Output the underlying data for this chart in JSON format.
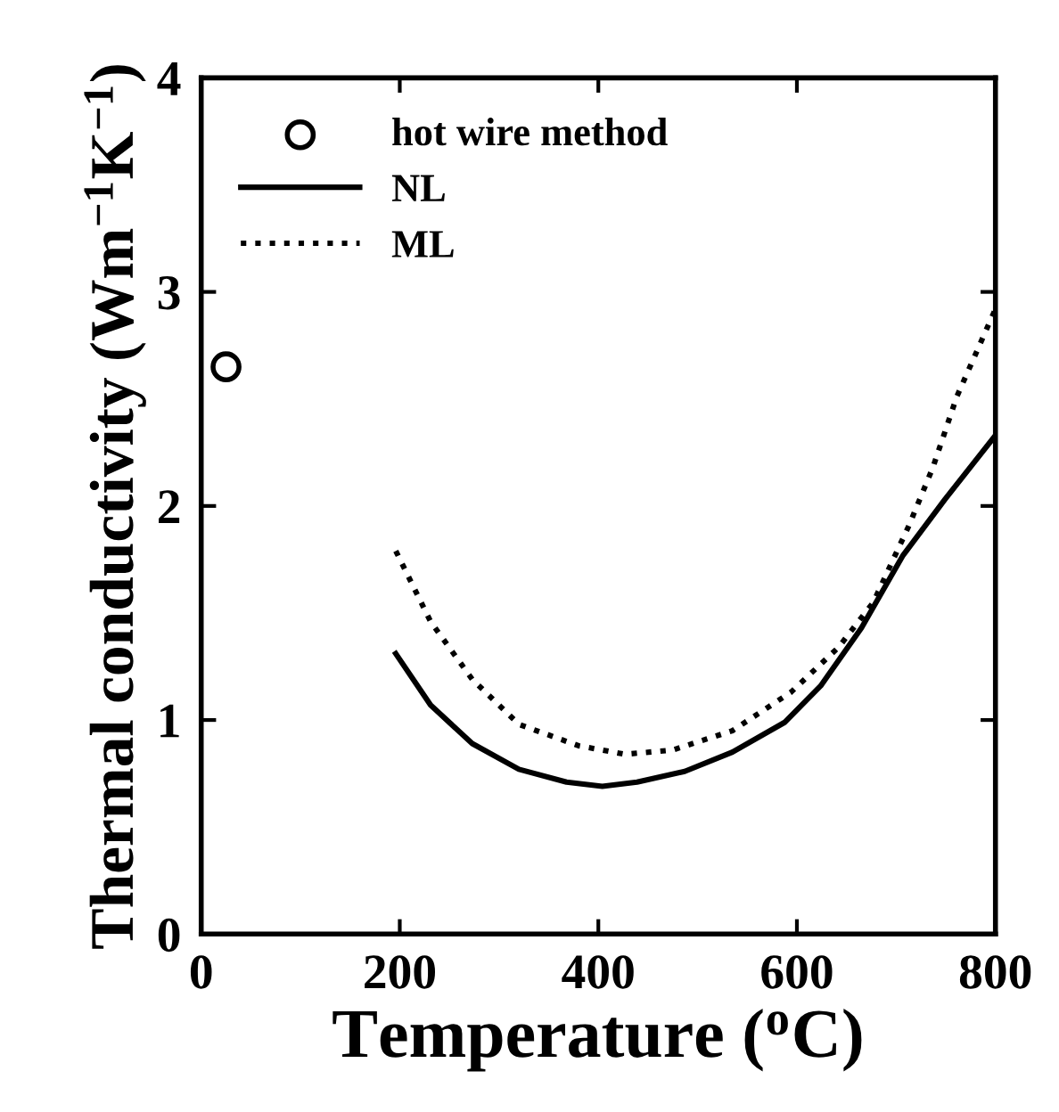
{
  "chart_data": {
    "type": "line",
    "xlabel": "Temperature ($^{o}$C)",
    "ylabel": "Thermal conductivity (Wm$^{−1}$K$^{−1}$)",
    "xlim": [
      0,
      800
    ],
    "xticks": [
      0,
      200,
      400,
      600,
      800
    ],
    "ylim": [
      0,
      4
    ],
    "yticks": [
      0,
      1,
      2,
      3,
      4
    ],
    "grid": false,
    "legend": "top left",
    "series": [
      {
        "name": "hot wire method",
        "type": "scatter",
        "marker": "circle",
        "color": "#000000",
        "x": [
          25
        ],
        "values": [
          2.65
        ]
      },
      {
        "name": "NL",
        "line_style": "solid",
        "color": "#000000",
        "x": [
          196,
          231,
          273,
          320,
          368,
          404,
          439,
          487,
          535,
          588,
          624,
          665,
          707,
          749,
          800
        ],
        "values": [
          1.31,
          1.07,
          0.89,
          0.77,
          0.71,
          0.69,
          0.71,
          0.76,
          0.85,
          0.99,
          1.16,
          1.43,
          1.77,
          2.03,
          2.33
        ]
      },
      {
        "name": "ML",
        "line_style": "dotted",
        "color": "#000000",
        "x": [
          196,
          231,
          273,
          320,
          380,
          427,
          475,
          535,
          594,
          642,
          677,
          713,
          737,
          761,
          800
        ],
        "values": [
          1.79,
          1.46,
          1.19,
          0.98,
          0.88,
          0.84,
          0.86,
          0.95,
          1.13,
          1.34,
          1.55,
          1.91,
          2.18,
          2.51,
          2.92
        ]
      }
    ]
  }
}
